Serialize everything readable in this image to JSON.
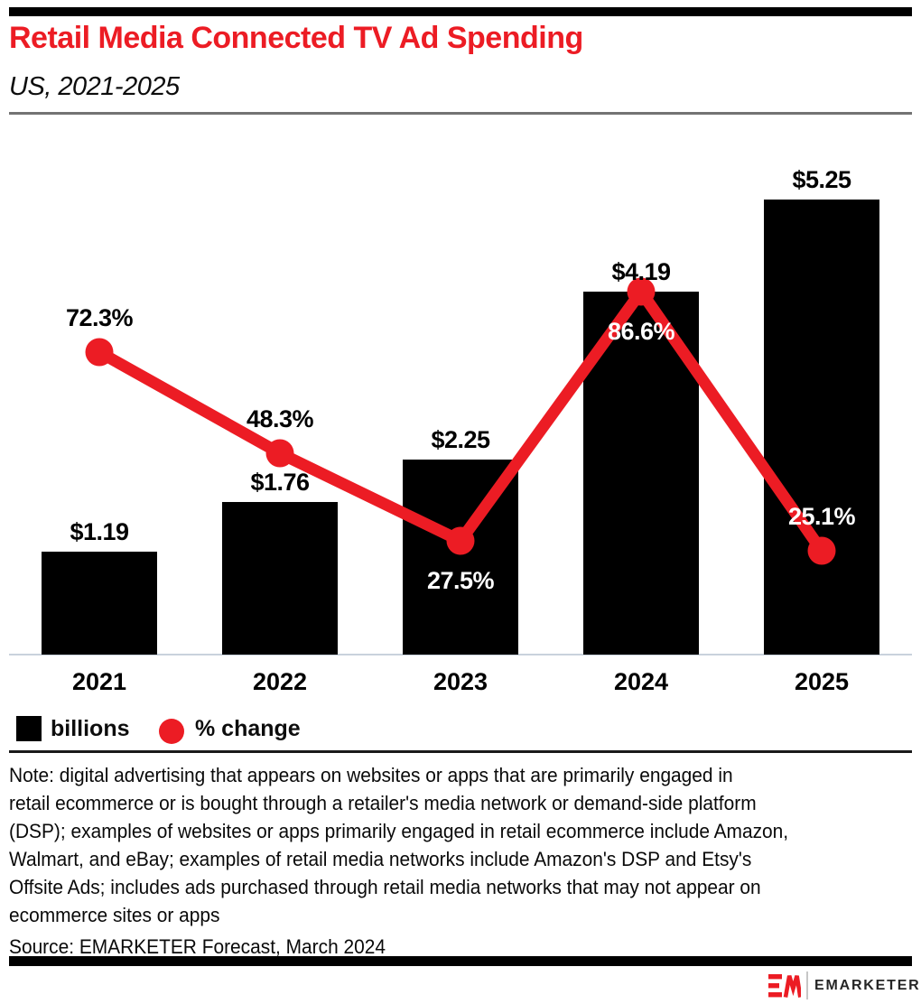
{
  "header": {
    "title": "Retail Media Connected TV Ad Spending",
    "subtitle": "US, 2021-2025"
  },
  "chart_data": {
    "type": "bar",
    "subtype": "bar-line-combo",
    "categories": [
      "2021",
      "2022",
      "2023",
      "2024",
      "2025"
    ],
    "series": [
      {
        "name": "billions",
        "type": "bar",
        "values": [
          1.19,
          1.76,
          2.25,
          4.19,
          5.25
        ],
        "value_labels": [
          "$1.19",
          "$1.76",
          "$2.25",
          "$4.19",
          "$5.25"
        ],
        "color": "#000000"
      },
      {
        "name": "% change",
        "type": "line",
        "values": [
          72.3,
          48.3,
          27.5,
          86.6,
          25.1
        ],
        "value_labels": [
          "72.3%",
          "48.3%",
          "27.5%",
          "86.6%",
          "25.1%"
        ],
        "color": "#EC1C24",
        "label_positions": [
          "above",
          "above",
          "below",
          "below",
          "above"
        ],
        "label_colors": [
          "#000000",
          "#000000",
          "#ffffff",
          "#ffffff",
          "#ffffff"
        ]
      }
    ],
    "legend": [
      {
        "label": "billions",
        "swatch": "square",
        "color": "#000000"
      },
      {
        "label": "% change",
        "swatch": "circle",
        "color": "#EC1C24"
      }
    ],
    "legend_position": "bottom-left",
    "grid": false,
    "xlabel": "",
    "ylabel": "",
    "axis_line_color": "#c9d2dc"
  },
  "note": {
    "lines": [
      "Note: digital advertising that appears on websites or apps that are primarily engaged in",
      "retail ecommerce or is bought through a retailer's media network or demand-side platform",
      "(DSP); examples of websites or apps primarily engaged in retail ecommerce include Amazon,",
      "Walmart, and eBay; examples of retail media networks include Amazon's DSP and Etsy's",
      "Offsite Ads; includes ads purchased through retail media networks that may not appear on",
      "ecommerce sites or apps"
    ]
  },
  "source": "Source: EMARKETER Forecast, March 2024",
  "footer": {
    "brand": "EMARKETER",
    "logo": "emarketer-em-logo",
    "brand_color": "#EC1C24"
  },
  "colors": {
    "accent_red": "#EC1C24",
    "bar_black": "#000000",
    "divider_gray": "#737373",
    "axis_line": "#c9d2dc"
  }
}
